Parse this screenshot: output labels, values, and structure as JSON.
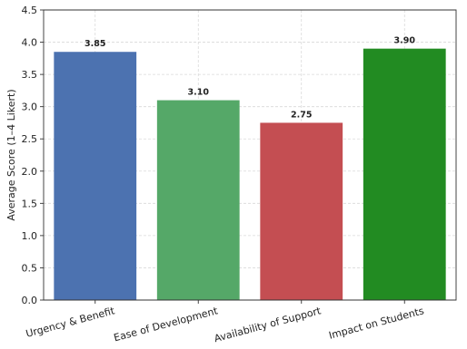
{
  "chart_data": {
    "type": "bar",
    "title": "",
    "xlabel": "",
    "ylabel": "Average Score (1–4 Likert)",
    "categories": [
      "Urgency & Benefit",
      "Ease of Development",
      "Availability of Support",
      "Impact on Students"
    ],
    "values": [
      3.85,
      3.1,
      2.75,
      3.9
    ],
    "value_labels": [
      "3.85",
      "3.10",
      "2.75",
      "3.90"
    ],
    "colors": [
      "#4c72b0",
      "#55a868",
      "#c44e52",
      "#228b22"
    ],
    "ylim": [
      0,
      4.5
    ],
    "yticks": [
      0.0,
      0.5,
      1.0,
      1.5,
      2.0,
      2.5,
      3.0,
      3.5,
      4.0,
      4.5
    ],
    "ytick_labels": [
      "0.0",
      "0.5",
      "1.0",
      "1.5",
      "2.0",
      "2.5",
      "3.0",
      "3.5",
      "4.0",
      "4.5"
    ],
    "grid": true,
    "legend": "none"
  }
}
